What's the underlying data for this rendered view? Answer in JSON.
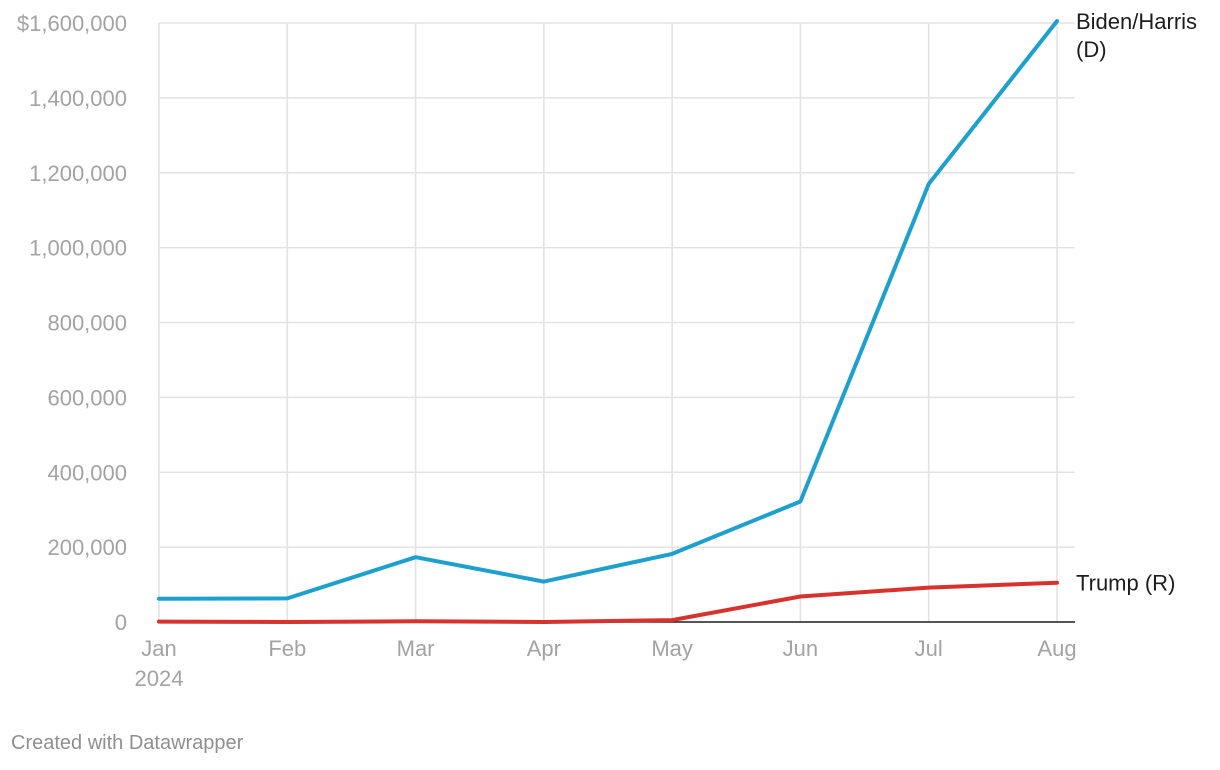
{
  "chart_data": {
    "type": "line",
    "categories": [
      "Jan",
      "Feb",
      "Mar",
      "Apr",
      "May",
      "Jun",
      "Jul",
      "Aug"
    ],
    "category_sublabels": [
      "2024",
      "",
      "",
      "",
      "",
      "",
      "",
      ""
    ],
    "series": [
      {
        "name": "Biden/Harris (D)",
        "label_lines": [
          "Biden/Harris",
          "(D)"
        ],
        "color": "#1ea0cf",
        "values": [
          62000,
          63000,
          173000,
          108000,
          182000,
          322000,
          1170000,
          1605000
        ]
      },
      {
        "name": "Trump (R)",
        "label_lines": [
          "Trump (R)"
        ],
        "color": "#d7322d",
        "values": [
          1000,
          0,
          2000,
          0,
          5000,
          68000,
          92000,
          105000
        ]
      }
    ],
    "y_ticks": [
      0,
      200000,
      400000,
      600000,
      800000,
      1000000,
      1200000,
      1400000,
      1600000
    ],
    "y_tick_labels": [
      "0",
      "200,000",
      "400,000",
      "600,000",
      "800,000",
      "1,000,000",
      "1,200,000",
      "1,400,000",
      "$1,600,000"
    ],
    "ylim": [
      0,
      1600000
    ],
    "grid": true,
    "legend": "direct labels at line ends (right)"
  },
  "footer": {
    "credit": "Created with Datawrapper"
  }
}
